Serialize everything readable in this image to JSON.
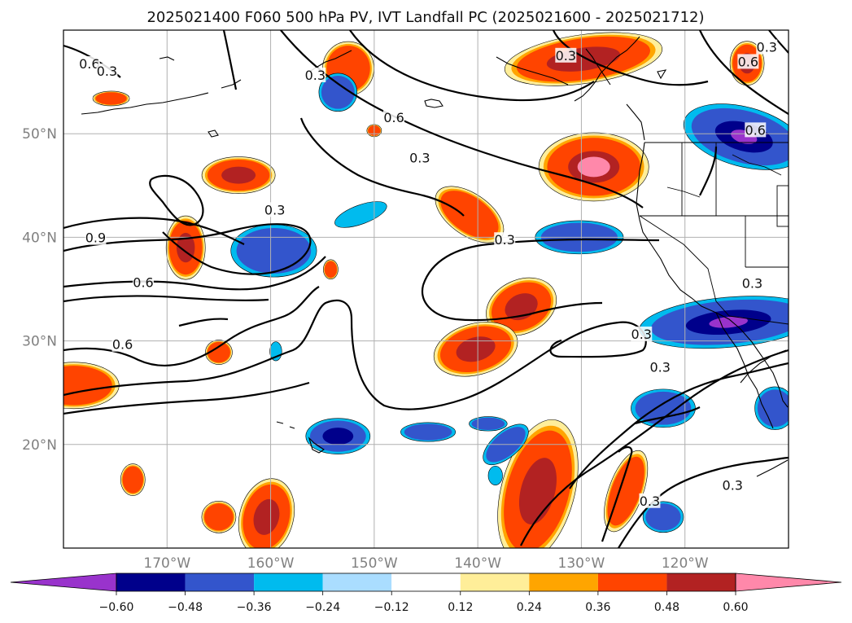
{
  "title": "2025021400 F060 500 hPa PV, IVT Landfall PC (2025021600 - 2025021712)",
  "map": {
    "lon_range": [
      -180,
      -110
    ],
    "lat_range": [
      10,
      60
    ],
    "lon_ticks": [
      {
        "lon": -170,
        "label": "170°W"
      },
      {
        "lon": -160,
        "label": "160°W"
      },
      {
        "lon": -150,
        "label": "150°W"
      },
      {
        "lon": -140,
        "label": "140°W"
      },
      {
        "lon": -130,
        "label": "130°W"
      },
      {
        "lon": -120,
        "label": "120°W"
      }
    ],
    "lat_ticks": [
      {
        "lat": 50,
        "label": "50°N"
      },
      {
        "lat": 40,
        "label": "40°N"
      },
      {
        "lat": 30,
        "label": "30°N"
      },
      {
        "lat": 20,
        "label": "20°N"
      }
    ],
    "grid": true,
    "contour_labels": [
      {
        "text": "0.6",
        "lon": -177.5,
        "lat": 56.7
      },
      {
        "text": "0.3",
        "lon": -175.8,
        "lat": 56.0
      },
      {
        "text": "0.3",
        "lon": -155.7,
        "lat": 55.6
      },
      {
        "text": "0.6",
        "lon": -148.1,
        "lat": 51.5
      },
      {
        "text": "0.3",
        "lon": -145.6,
        "lat": 47.6
      },
      {
        "text": "0.3",
        "lon": -159.6,
        "lat": 42.6
      },
      {
        "text": "0.9",
        "lon": -176.9,
        "lat": 39.9
      },
      {
        "text": "0.6",
        "lon": -172.3,
        "lat": 35.6
      },
      {
        "text": "0.6",
        "lon": -174.3,
        "lat": 29.6
      },
      {
        "text": "0.3",
        "lon": -137.4,
        "lat": 39.7
      },
      {
        "text": "0.3",
        "lon": -131.5,
        "lat": 57.5
      },
      {
        "text": "0.6",
        "lon": -113.9,
        "lat": 56.9
      },
      {
        "text": "0.3",
        "lon": -112.1,
        "lat": 58.3
      },
      {
        "text": "0.3",
        "lon": -124.2,
        "lat": 30.6
      },
      {
        "text": "0.3",
        "lon": -122.4,
        "lat": 27.4
      },
      {
        "text": "0.3",
        "lon": -115.4,
        "lat": 16.0
      },
      {
        "text": "0.3",
        "lon": -123.4,
        "lat": 14.5
      },
      {
        "text": "0.6",
        "lon": -113.2,
        "lat": 50.3
      },
      {
        "text": "0.3",
        "lon": -113.5,
        "lat": 35.5
      }
    ]
  },
  "colorbar": {
    "levels": [
      "−0.60",
      "−0.48",
      "−0.36",
      "−0.24",
      "−0.12",
      "0.12",
      "0.24",
      "0.36",
      "0.48",
      "0.60"
    ],
    "colors": [
      "#9933cc",
      "#00008b",
      "#3355cc",
      "#00bbee",
      "#aaddff",
      "#ffffff",
      "#ffee99",
      "#ffa500",
      "#ff4400",
      "#b22222",
      "#ff88aa"
    ],
    "extend": "both"
  },
  "palette": {
    "neg_strong": "#00008b",
    "neg_mid": "#3355cc",
    "neg_light": "#00bbee",
    "neg_purple": "#9933cc",
    "pos_yellow": "#ffee99",
    "pos_orange": "#ffa500",
    "pos_red": "#ff4400",
    "pos_dark": "#b22222",
    "pos_pink": "#ff88aa"
  },
  "shaded_features": [
    {
      "sign": "pos",
      "peak": 0.48,
      "lon": -168.2,
      "lat": 39.0,
      "rx": 1.6,
      "ry": 2.6,
      "rot": 0
    },
    {
      "sign": "pos",
      "peak": 0.48,
      "lon": -163.1,
      "lat": 46.0,
      "rx": 3.0,
      "ry": 1.5,
      "rot": 0
    },
    {
      "sign": "pos",
      "peak": 0.36,
      "lon": -175.4,
      "lat": 53.4,
      "rx": 1.5,
      "ry": 0.6,
      "rot": 0
    },
    {
      "sign": "pos",
      "peak": 0.36,
      "lon": -179.0,
      "lat": 25.7,
      "rx": 3.7,
      "ry": 1.9,
      "rot": 0
    },
    {
      "sign": "pos",
      "peak": 0.36,
      "lon": -165.0,
      "lat": 28.9,
      "rx": 1.1,
      "ry": 1.0,
      "rot": 0
    },
    {
      "sign": "pos",
      "peak": 0.36,
      "lon": -154.2,
      "lat": 36.9,
      "rx": 0.6,
      "ry": 0.8,
      "rot": 0
    },
    {
      "sign": "pos",
      "peak": 0.36,
      "lon": -152.5,
      "lat": 56.3,
      "rx": 2.1,
      "ry": 2.2,
      "rot": 0
    },
    {
      "sign": "pos",
      "peak": 0.36,
      "lon": -150.0,
      "lat": 50.3,
      "rx": 0.6,
      "ry": 0.5,
      "rot": 0
    },
    {
      "sign": "pos",
      "peak": 0.36,
      "lon": -140.8,
      "lat": 42.2,
      "rx": 3.2,
      "ry": 1.7,
      "rot": 35
    },
    {
      "sign": "pos",
      "peak": 0.48,
      "lon": -135.8,
      "lat": 33.3,
      "rx": 3.0,
      "ry": 2.2,
      "rot": -25
    },
    {
      "sign": "pos",
      "peak": 0.48,
      "lon": -140.2,
      "lat": 29.2,
      "rx": 3.5,
      "ry": 2.1,
      "rot": -15
    },
    {
      "sign": "pos",
      "peak": 0.48,
      "lon": -129.8,
      "lat": 57.2,
      "rx": 6.5,
      "ry": 2.0,
      "rot": -8
    },
    {
      "sign": "pos",
      "peak": 0.48,
      "lon": -114.0,
      "lat": 56.8,
      "rx": 1.4,
      "ry": 1.8,
      "rot": 0
    },
    {
      "sign": "pos",
      "peak": 0.6,
      "lon": -128.8,
      "lat": 46.8,
      "rx": 4.5,
      "ry": 2.8,
      "rot": 0
    },
    {
      "sign": "pos",
      "peak": 0.36,
      "lon": -165.0,
      "lat": 13.0,
      "rx": 1.4,
      "ry": 1.3,
      "rot": 0
    },
    {
      "sign": "pos",
      "peak": 0.48,
      "lon": -160.4,
      "lat": 13.0,
      "rx": 2.2,
      "ry": 3.2,
      "rot": 15
    },
    {
      "sign": "pos",
      "peak": 0.36,
      "lon": -173.3,
      "lat": 16.6,
      "rx": 1.0,
      "ry": 1.3,
      "rot": 0
    },
    {
      "sign": "pos",
      "peak": 0.48,
      "lon": -134.2,
      "lat": 15.5,
      "rx": 3.0,
      "ry": 6.0,
      "rot": 15
    },
    {
      "sign": "pos",
      "peak": 0.36,
      "lon": -125.7,
      "lat": 15.5,
      "rx": 1.4,
      "ry": 3.5,
      "rot": 20
    },
    {
      "sign": "neg",
      "peak": -0.36,
      "lon": -153.5,
      "lat": 54.0,
      "rx": 1.6,
      "ry": 1.6,
      "rot": 0
    },
    {
      "sign": "neg",
      "peak": -0.36,
      "lon": -159.7,
      "lat": 38.7,
      "rx": 3.6,
      "ry": 2.2,
      "rot": 0
    },
    {
      "sign": "neg",
      "peak": -0.24,
      "lon": -151.3,
      "lat": 42.2,
      "rx": 2.3,
      "ry": 0.8,
      "rot": -20
    },
    {
      "sign": "neg",
      "peak": -0.36,
      "lon": -130.2,
      "lat": 40.0,
      "rx": 3.7,
      "ry": 1.4,
      "rot": 0
    },
    {
      "sign": "neg",
      "peak": -0.24,
      "lon": -159.5,
      "lat": 29.0,
      "rx": 0.5,
      "ry": 0.8,
      "rot": 0
    },
    {
      "sign": "neg",
      "peak": -0.48,
      "lon": -153.5,
      "lat": 20.8,
      "rx": 2.7,
      "ry": 1.5,
      "rot": 0
    },
    {
      "sign": "neg",
      "peak": -0.36,
      "lon": -144.8,
      "lat": 21.2,
      "rx": 2.3,
      "ry": 0.8,
      "rot": 0
    },
    {
      "sign": "neg",
      "peak": -0.36,
      "lon": -139.0,
      "lat": 22.0,
      "rx": 1.6,
      "ry": 0.6,
      "rot": 0
    },
    {
      "sign": "neg",
      "peak": -0.36,
      "lon": -137.3,
      "lat": 20.0,
      "rx": 2.3,
      "ry": 1.1,
      "rot": -40
    },
    {
      "sign": "neg",
      "peak": -0.24,
      "lon": -138.3,
      "lat": 17.0,
      "rx": 0.6,
      "ry": 0.8,
      "rot": 0
    },
    {
      "sign": "neg",
      "peak": -0.36,
      "lon": -122.1,
      "lat": 23.5,
      "rx": 2.7,
      "ry": 1.6,
      "rot": 0
    },
    {
      "sign": "neg",
      "peak": -0.36,
      "lon": -122.1,
      "lat": 13.0,
      "rx": 1.7,
      "ry": 1.3,
      "rot": 0
    },
    {
      "sign": "neg",
      "peak": -0.36,
      "lon": -111.3,
      "lat": 23.5,
      "rx": 1.7,
      "ry": 1.8,
      "rot": 0
    },
    {
      "sign": "neg",
      "peak": -0.6,
      "lon": -115.8,
      "lat": 31.8,
      "rx": 7.5,
      "ry": 2.1,
      "rot": -5
    },
    {
      "sign": "neg",
      "peak": -0.6,
      "lon": -114.3,
      "lat": 49.7,
      "rx": 5.2,
      "ry": 2.5,
      "rot": 15
    }
  ]
}
